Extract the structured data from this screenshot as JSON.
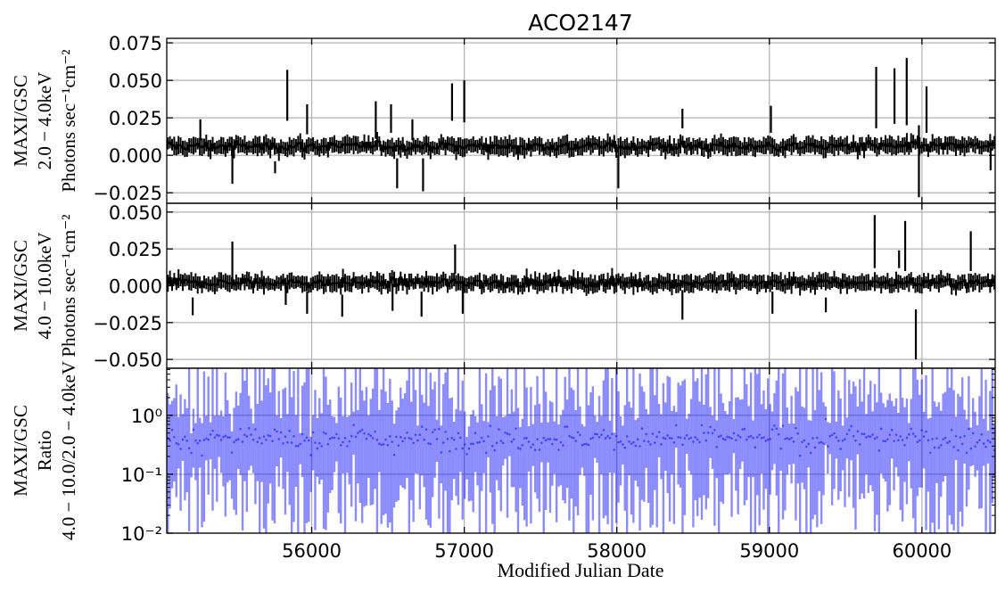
{
  "figure": {
    "title": "ACO2147",
    "xlabel": "Modified Julian Date"
  },
  "chart_data": [
    {
      "type": "line",
      "panel": "top",
      "ylabel_lines": [
        "MAXI/GSC",
        "2.0 − 4.0keV",
        "Photons sec⁻¹cm⁻²"
      ],
      "xlim": [
        55050,
        60480
      ],
      "ylim": [
        -0.032,
        0.078
      ],
      "yscale": "linear",
      "grid": true,
      "x_ticks": [
        56000,
        57000,
        58000,
        59000,
        60000
      ],
      "y_ticks": [
        -0.025,
        0.0,
        0.025,
        0.05,
        0.075
      ],
      "y_tick_labels": [
        "−0.025",
        "0.000",
        "0.025",
        "0.050",
        "0.075"
      ],
      "series": [
        {
          "style": "step with error bars",
          "color": "#000000",
          "bin_days": 14,
          "typical_value": 0.006,
          "typical_error": 0.005,
          "notable_error_bars": [
            {
              "x": 55270,
              "low": 0.01,
              "high": 0.024
            },
            {
              "x": 55480,
              "low": -0.019,
              "high": 0.004
            },
            {
              "x": 55760,
              "low": -0.012,
              "high": -0.004
            },
            {
              "x": 55840,
              "low": 0.023,
              "high": 0.057
            },
            {
              "x": 55970,
              "low": 0.014,
              "high": 0.034
            },
            {
              "x": 56420,
              "low": 0.011,
              "high": 0.036
            },
            {
              "x": 56520,
              "low": 0.015,
              "high": 0.034
            },
            {
              "x": 56560,
              "low": -0.022,
              "high": -0.002
            },
            {
              "x": 56660,
              "low": 0.01,
              "high": 0.024
            },
            {
              "x": 56730,
              "low": -0.024,
              "high": -0.002
            },
            {
              "x": 56920,
              "low": 0.023,
              "high": 0.048
            },
            {
              "x": 57000,
              "low": 0.022,
              "high": 0.05
            },
            {
              "x": 58010,
              "low": -0.022,
              "high": 0.0
            },
            {
              "x": 58430,
              "low": 0.018,
              "high": 0.031
            },
            {
              "x": 59010,
              "low": 0.015,
              "high": 0.033
            },
            {
              "x": 59700,
              "low": 0.018,
              "high": 0.059
            },
            {
              "x": 59820,
              "low": 0.021,
              "high": 0.058
            },
            {
              "x": 59900,
              "low": 0.02,
              "high": 0.065
            },
            {
              "x": 59980,
              "low": -0.028,
              "high": 0.02
            },
            {
              "x": 60030,
              "low": 0.015,
              "high": 0.046
            },
            {
              "x": 60450,
              "low": -0.01,
              "high": 0.005
            }
          ]
        }
      ]
    },
    {
      "type": "line",
      "panel": "middle",
      "ylabel_lines": [
        "MAXI/GSC",
        "4.0 − 10.0keV",
        "Photons sec⁻¹cm⁻²"
      ],
      "xlim": [
        55050,
        60480
      ],
      "ylim": [
        -0.056,
        0.056
      ],
      "yscale": "linear",
      "grid": true,
      "x_ticks": [
        56000,
        57000,
        58000,
        59000,
        60000
      ],
      "y_ticks": [
        -0.05,
        -0.025,
        0.0,
        0.025,
        0.05
      ],
      "y_tick_labels": [
        "−0.050",
        "−0.025",
        "0.000",
        "0.025",
        "0.050"
      ],
      "series": [
        {
          "style": "step with error bars",
          "color": "#000000",
          "bin_days": 14,
          "typical_value": 0.002,
          "typical_error": 0.005,
          "notable_error_bars": [
            {
              "x": 55220,
              "low": -0.02,
              "high": -0.008
            },
            {
              "x": 55480,
              "low": 0.0,
              "high": 0.03
            },
            {
              "x": 55830,
              "low": -0.013,
              "high": 0.0
            },
            {
              "x": 55970,
              "low": -0.019,
              "high": -0.004
            },
            {
              "x": 56200,
              "low": -0.021,
              "high": -0.006
            },
            {
              "x": 56530,
              "low": -0.017,
              "high": 0.001
            },
            {
              "x": 56720,
              "low": -0.021,
              "high": -0.004
            },
            {
              "x": 56940,
              "low": 0.008,
              "high": 0.028
            },
            {
              "x": 56990,
              "low": -0.019,
              "high": 0.0
            },
            {
              "x": 58430,
              "low": -0.023,
              "high": -0.003
            },
            {
              "x": 59020,
              "low": -0.019,
              "high": -0.004
            },
            {
              "x": 59370,
              "low": -0.018,
              "high": -0.008
            },
            {
              "x": 59690,
              "low": 0.012,
              "high": 0.048
            },
            {
              "x": 59850,
              "low": 0.012,
              "high": 0.024
            },
            {
              "x": 59890,
              "low": 0.01,
              "high": 0.044
            },
            {
              "x": 59960,
              "low": -0.05,
              "high": -0.016
            },
            {
              "x": 60320,
              "low": 0.01,
              "high": 0.037
            }
          ]
        }
      ]
    },
    {
      "type": "line",
      "panel": "bottom",
      "ylabel_lines": [
        "MAXI/GSC",
        "Ratio",
        "4.0 − 10.0/2.0 − 4.0keV"
      ],
      "xlim": [
        55050,
        60480
      ],
      "ylim": [
        0.01,
        6.3
      ],
      "yscale": "log",
      "grid": true,
      "x_ticks": [
        56000,
        57000,
        58000,
        59000,
        60000
      ],
      "x_tick_labels": [
        "56000",
        "57000",
        "58000",
        "59000",
        "60000"
      ],
      "y_ticks": [
        0.01,
        0.1,
        1
      ],
      "y_tick_labels": [
        "10⁻²",
        "10⁻¹",
        "10⁰"
      ],
      "series": [
        {
          "style": "semi-transparent error bars",
          "color": "#0000ff",
          "bin_days": 14,
          "typical_value": 0.4,
          "value_range": [
            0.01,
            6.3
          ]
        }
      ]
    }
  ]
}
